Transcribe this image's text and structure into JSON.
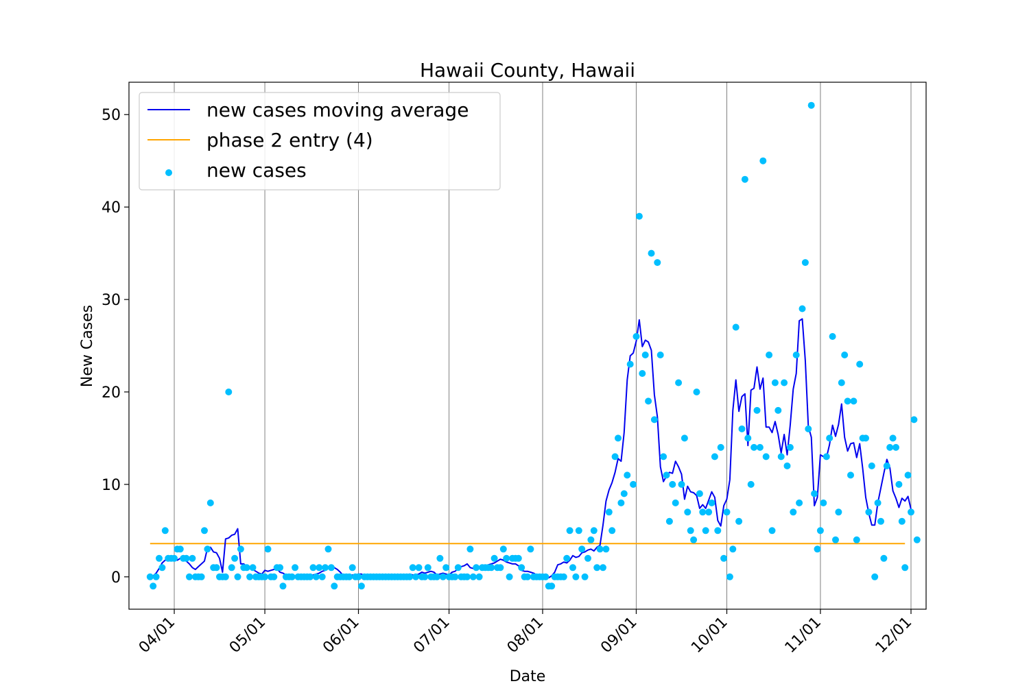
{
  "chart_data": {
    "type": "line",
    "title": "Hawaii County, Hawaii",
    "xlabel": "Date",
    "ylabel": "New Cases",
    "x_start": "2020-03-24",
    "x_end": "2020-11-29",
    "xlim": [
      "2020-03-17",
      "2020-12-06"
    ],
    "ylim": [
      -3.5,
      53.5
    ],
    "yticks": [
      0,
      10,
      20,
      30,
      40,
      50
    ],
    "xticks": [
      {
        "label": "04/01",
        "date": "2020-04-01"
      },
      {
        "label": "05/01",
        "date": "2020-05-01"
      },
      {
        "label": "06/01",
        "date": "2020-06-01"
      },
      {
        "label": "07/01",
        "date": "2020-07-01"
      },
      {
        "label": "08/01",
        "date": "2020-08-01"
      },
      {
        "label": "09/01",
        "date": "2020-09-01"
      },
      {
        "label": "10/01",
        "date": "2020-10-01"
      },
      {
        "label": "11/01",
        "date": "2020-11-01"
      },
      {
        "label": "12/01",
        "date": "2020-12-01"
      }
    ],
    "grid": "vertical at x ticks",
    "legend_position": "upper-left",
    "colors": {
      "moving_average": "#0000ee",
      "phase2": "#ffa500",
      "new_cases": "#00bfff",
      "grid": "#808080"
    },
    "series": [
      {
        "name": "new cases moving average",
        "kind": "line",
        "values": [
          0,
          0.1,
          0.4,
          0.9,
          1.5,
          1.8,
          2.0,
          2.1,
          1.9,
          1.8,
          2.0,
          2.1,
          1.7,
          1.4,
          1.0,
          0.8,
          1.1,
          1.4,
          1.7,
          3.1,
          3.2,
          2.7,
          2.6,
          2.0,
          0.5,
          4.1,
          4.2,
          4.5,
          4.6,
          5.2,
          1.4,
          1.4,
          1.1,
          1.0,
          0.8,
          0.6,
          0.4,
          0.3,
          0.7,
          0.6,
          0.7,
          0.8,
          0.9,
          0.5,
          0.4,
          0.2,
          0.1,
          0.1,
          0.1,
          0.1,
          0.2,
          0.2,
          0.2,
          0.1,
          0.2,
          0.3,
          0.4,
          0.6,
          0.7,
          1.0,
          1.1,
          1.0,
          0.8,
          0.5,
          0.1,
          0.1,
          0.1,
          0.2,
          0.2,
          0.3,
          0.3,
          0.1,
          0,
          0,
          0.1,
          0.1,
          0.1,
          0.1,
          0.1,
          0.1,
          0.1,
          0.1,
          0.1,
          0.1,
          0.2,
          0.2,
          0.3,
          0.2,
          0.2,
          0.3,
          0.5,
          0.4,
          0.5,
          0.6,
          0.5,
          0.2,
          0.3,
          0.4,
          0.3,
          0.2,
          0.5,
          0.6,
          0.9,
          1.1,
          1.2,
          1.4,
          1.0,
          0.9,
          1.0,
          1.1,
          1.2,
          1.2,
          1.3,
          1.4,
          1.5,
          1.7,
          1.9,
          1.8,
          1.6,
          1.5,
          1.4,
          1.4,
          1.2,
          0.7,
          0.6,
          0.6,
          0.5,
          0.4,
          0.2,
          0,
          -0.1,
          -0.1,
          -0.1,
          0.1,
          0.5,
          1.3,
          1.4,
          1.6,
          1.5,
          1.8,
          2.3,
          2.1,
          2.2,
          2.6,
          2.7,
          2.9,
          3.0,
          2.8,
          3.2,
          3.4,
          5.6,
          8.2,
          9.4,
          10.2,
          11.3,
          12.8,
          12.5,
          15.6,
          21.3,
          23.9,
          24.2,
          25.5,
          27.8,
          24.9,
          25.6,
          25.4,
          24.5,
          19.7,
          17.3,
          11.9,
          10.3,
          10.9,
          11.3,
          11.2,
          12.5,
          11.9,
          11.1,
          8.4,
          9.8,
          9.2,
          9.1,
          8.8,
          7.4,
          7.8,
          7.4,
          8.3,
          9.2,
          8.6,
          6.1,
          5.5,
          7.7,
          8.4,
          10.5,
          18.0,
          21.3,
          17.9,
          19.5,
          19.8,
          14.2,
          20.2,
          20.4,
          22.7,
          20.3,
          21.5,
          16.2,
          16.2,
          15.6,
          16.8,
          15.4,
          13.4,
          15.4,
          13.2,
          16.4,
          20.3,
          22.0,
          27.7,
          27.9,
          23.4,
          16.3,
          15.1,
          7.7,
          8.6,
          13.2,
          13.0,
          12.9,
          14.3,
          16.4,
          15.2,
          16.5,
          18.7,
          15.1,
          13.6,
          14.4,
          14.5,
          12.9,
          14.4,
          11.7,
          8.6,
          6.9,
          5.6,
          5.6,
          8.0,
          9.6,
          11.2,
          12.7,
          11.8,
          9.3,
          8.5,
          7.5,
          8.5,
          8.2,
          8.7,
          7.3
        ],
        "display_values": [
          0,
          0.1,
          0.4,
          0.9,
          1.5,
          1.8,
          2.0,
          2.1,
          1.9,
          1.8,
          2.0,
          2.1,
          1.7,
          1.4,
          1.0,
          0.8,
          1.1,
          1.4,
          1.7,
          3.1,
          3.2,
          2.7,
          2.6,
          2.0,
          0.5,
          4.1,
          4.2,
          4.5,
          4.6,
          5.2,
          1.4,
          1.4,
          1.1,
          1.0,
          0.8,
          0.6,
          0.4,
          0.3,
          0.7,
          0.6,
          0.7,
          0.8,
          0.9,
          0.5,
          0.4,
          0.2,
          0.1,
          0.1,
          0.1,
          0.1,
          0.2,
          0.2,
          0.2,
          0.1,
          0.2,
          0.3,
          0.4,
          0.6,
          0.7,
          1.0,
          1.1,
          1.0,
          0.8,
          0.5,
          0.1,
          0.1,
          0.1,
          0.2,
          0.2,
          0.3,
          0.3,
          0.1,
          0,
          0,
          0.1,
          0.1,
          0.1,
          0.1,
          0.1,
          0.1,
          0.1,
          0.1,
          0.1,
          0.1,
          0.2,
          0.2,
          0.3,
          0.2,
          0.2,
          0.3,
          0.5,
          0.4,
          0.5,
          0.6,
          0.5,
          0.2,
          0.3,
          0.4,
          0.3,
          0.2,
          0.5,
          0.6,
          0.9,
          1.1,
          1.2,
          1.4,
          1.0,
          0.9,
          1.0,
          1.1,
          1.2,
          1.2,
          1.3,
          1.4,
          1.5,
          1.7,
          1.9,
          1.8,
          1.6,
          1.5,
          1.4,
          1.4,
          1.2,
          0.7,
          0.6,
          0.6,
          0.5,
          0.4,
          0.2,
          0,
          -0.1,
          -0.1,
          -0.1,
          0.1,
          0.5,
          1.3,
          1.4,
          1.6,
          1.5,
          1.8,
          2.3,
          2.1,
          2.2,
          2.6,
          2.7,
          2.9,
          3.0,
          2.8,
          3.2,
          3.4,
          5.6,
          8.2,
          9.4,
          10.2,
          11.3,
          12.8,
          12.5,
          15.6,
          21.3,
          23.9,
          24.2,
          25.5,
          27.8,
          24.9,
          25.6,
          25.4,
          24.5,
          19.7,
          17.3,
          11.9,
          10.3,
          10.9,
          11.3,
          11.2,
          12.5,
          11.9,
          11.1,
          8.4,
          9.8,
          9.2,
          9.1,
          8.8,
          7.4,
          7.8,
          7.4,
          8.3,
          9.2,
          8.6,
          6.1,
          5.5,
          7.7,
          8.4,
          10.5,
          18.0,
          21.3,
          17.9,
          19.5,
          19.8,
          14.2,
          20.2,
          20.4,
          22.7,
          20.3,
          21.5,
          16.2,
          16.2,
          15.6,
          16.8,
          15.4,
          13.4,
          15.4,
          13.2,
          16.4,
          20.3,
          22.0,
          27.7,
          27.9,
          23.4,
          16.3,
          15.1,
          7.7,
          8.6,
          13.2,
          13.0,
          12.9,
          14.3,
          16.4,
          15.2,
          16.5,
          18.7,
          15.1,
          13.6,
          14.4,
          14.5,
          12.9,
          14.4,
          11.7,
          8.6,
          6.9,
          5.6,
          5.6,
          8.0,
          9.6,
          11.2,
          12.7,
          11.8,
          9.3,
          8.5,
          7.5,
          8.5,
          8.2,
          8.7,
          7.3
        ]
      },
      {
        "name": "phase 2 entry (4)",
        "kind": "hline",
        "value": 3.6
      },
      {
        "name": "new cases",
        "kind": "scatter",
        "values": [
          0,
          -1,
          0,
          2,
          1,
          5,
          2,
          2,
          2,
          3,
          3,
          2,
          2,
          0,
          2,
          0,
          0,
          0,
          5,
          3,
          8,
          1,
          1,
          0,
          0,
          0,
          20,
          1,
          2,
          0,
          3,
          1,
          1,
          0,
          1,
          0,
          0,
          0,
          0,
          3,
          0,
          0,
          1,
          1,
          -1,
          0,
          0,
          0,
          1,
          0,
          0,
          0,
          0,
          0,
          1,
          0,
          1,
          0,
          1,
          3,
          1,
          -1,
          0,
          0,
          0,
          0,
          0,
          1,
          0,
          0,
          -1,
          0,
          0,
          0,
          0,
          0,
          0,
          0,
          0,
          0,
          0,
          0,
          0,
          0,
          0,
          0,
          0,
          1,
          0,
          1,
          0,
          0,
          1,
          0,
          0,
          0,
          2,
          0,
          1,
          0,
          0,
          0,
          1,
          0,
          0,
          0,
          3,
          0,
          1,
          0,
          1,
          1,
          1,
          1,
          2,
          1,
          1,
          3,
          2,
          0,
          2,
          2,
          2,
          1,
          0,
          0,
          3,
          0,
          0,
          0,
          0,
          0,
          -1,
          -1,
          0,
          0,
          0,
          0,
          2,
          5,
          1,
          0,
          5,
          3,
          0,
          2,
          4,
          5,
          1,
          3,
          1,
          3,
          7,
          5,
          13,
          15,
          8,
          9,
          11,
          23,
          10,
          26,
          39,
          22,
          24,
          19,
          35,
          17,
          34,
          24,
          13,
          11,
          6,
          10,
          8,
          21,
          10,
          15,
          7,
          5,
          4,
          20,
          9,
          7,
          5,
          7,
          8,
          13,
          5,
          14,
          2,
          7,
          0,
          3,
          27,
          6,
          16,
          43,
          15,
          10,
          14,
          18,
          14,
          45,
          13,
          24,
          5,
          21,
          18,
          13,
          21,
          12,
          14,
          7,
          24,
          8,
          29,
          34,
          16,
          51,
          9,
          3,
          5,
          8,
          13,
          15,
          26,
          4,
          7,
          21,
          24,
          19,
          11,
          19,
          4,
          23,
          15,
          15,
          7,
          12,
          0,
          8,
          6,
          2,
          12,
          14,
          15,
          14,
          10,
          6,
          1,
          11,
          7,
          17,
          4
        ]
      }
    ]
  }
}
